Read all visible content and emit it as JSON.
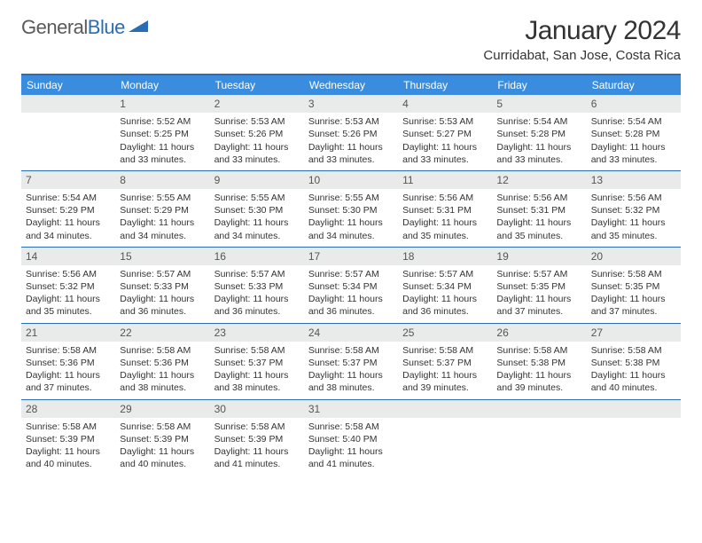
{
  "logo": {
    "text1": "General",
    "text2": "Blue"
  },
  "title": "January 2024",
  "location": "Curridabat, San Jose, Costa Rica",
  "weekdays": [
    "Sunday",
    "Monday",
    "Tuesday",
    "Wednesday",
    "Thursday",
    "Friday",
    "Saturday"
  ],
  "colors": {
    "header_bar": "#3a8dde",
    "border": "#2a6db5",
    "daynum_bg": "#e9eaea"
  },
  "weeks": [
    [
      {
        "n": "",
        "sr": "",
        "ss": "",
        "dl": ""
      },
      {
        "n": "1",
        "sr": "Sunrise: 5:52 AM",
        "ss": "Sunset: 5:25 PM",
        "dl": "Daylight: 11 hours and 33 minutes."
      },
      {
        "n": "2",
        "sr": "Sunrise: 5:53 AM",
        "ss": "Sunset: 5:26 PM",
        "dl": "Daylight: 11 hours and 33 minutes."
      },
      {
        "n": "3",
        "sr": "Sunrise: 5:53 AM",
        "ss": "Sunset: 5:26 PM",
        "dl": "Daylight: 11 hours and 33 minutes."
      },
      {
        "n": "4",
        "sr": "Sunrise: 5:53 AM",
        "ss": "Sunset: 5:27 PM",
        "dl": "Daylight: 11 hours and 33 minutes."
      },
      {
        "n": "5",
        "sr": "Sunrise: 5:54 AM",
        "ss": "Sunset: 5:28 PM",
        "dl": "Daylight: 11 hours and 33 minutes."
      },
      {
        "n": "6",
        "sr": "Sunrise: 5:54 AM",
        "ss": "Sunset: 5:28 PM",
        "dl": "Daylight: 11 hours and 33 minutes."
      }
    ],
    [
      {
        "n": "7",
        "sr": "Sunrise: 5:54 AM",
        "ss": "Sunset: 5:29 PM",
        "dl": "Daylight: 11 hours and 34 minutes."
      },
      {
        "n": "8",
        "sr": "Sunrise: 5:55 AM",
        "ss": "Sunset: 5:29 PM",
        "dl": "Daylight: 11 hours and 34 minutes."
      },
      {
        "n": "9",
        "sr": "Sunrise: 5:55 AM",
        "ss": "Sunset: 5:30 PM",
        "dl": "Daylight: 11 hours and 34 minutes."
      },
      {
        "n": "10",
        "sr": "Sunrise: 5:55 AM",
        "ss": "Sunset: 5:30 PM",
        "dl": "Daylight: 11 hours and 34 minutes."
      },
      {
        "n": "11",
        "sr": "Sunrise: 5:56 AM",
        "ss": "Sunset: 5:31 PM",
        "dl": "Daylight: 11 hours and 35 minutes."
      },
      {
        "n": "12",
        "sr": "Sunrise: 5:56 AM",
        "ss": "Sunset: 5:31 PM",
        "dl": "Daylight: 11 hours and 35 minutes."
      },
      {
        "n": "13",
        "sr": "Sunrise: 5:56 AM",
        "ss": "Sunset: 5:32 PM",
        "dl": "Daylight: 11 hours and 35 minutes."
      }
    ],
    [
      {
        "n": "14",
        "sr": "Sunrise: 5:56 AM",
        "ss": "Sunset: 5:32 PM",
        "dl": "Daylight: 11 hours and 35 minutes."
      },
      {
        "n": "15",
        "sr": "Sunrise: 5:57 AM",
        "ss": "Sunset: 5:33 PM",
        "dl": "Daylight: 11 hours and 36 minutes."
      },
      {
        "n": "16",
        "sr": "Sunrise: 5:57 AM",
        "ss": "Sunset: 5:33 PM",
        "dl": "Daylight: 11 hours and 36 minutes."
      },
      {
        "n": "17",
        "sr": "Sunrise: 5:57 AM",
        "ss": "Sunset: 5:34 PM",
        "dl": "Daylight: 11 hours and 36 minutes."
      },
      {
        "n": "18",
        "sr": "Sunrise: 5:57 AM",
        "ss": "Sunset: 5:34 PM",
        "dl": "Daylight: 11 hours and 36 minutes."
      },
      {
        "n": "19",
        "sr": "Sunrise: 5:57 AM",
        "ss": "Sunset: 5:35 PM",
        "dl": "Daylight: 11 hours and 37 minutes."
      },
      {
        "n": "20",
        "sr": "Sunrise: 5:58 AM",
        "ss": "Sunset: 5:35 PM",
        "dl": "Daylight: 11 hours and 37 minutes."
      }
    ],
    [
      {
        "n": "21",
        "sr": "Sunrise: 5:58 AM",
        "ss": "Sunset: 5:36 PM",
        "dl": "Daylight: 11 hours and 37 minutes."
      },
      {
        "n": "22",
        "sr": "Sunrise: 5:58 AM",
        "ss": "Sunset: 5:36 PM",
        "dl": "Daylight: 11 hours and 38 minutes."
      },
      {
        "n": "23",
        "sr": "Sunrise: 5:58 AM",
        "ss": "Sunset: 5:37 PM",
        "dl": "Daylight: 11 hours and 38 minutes."
      },
      {
        "n": "24",
        "sr": "Sunrise: 5:58 AM",
        "ss": "Sunset: 5:37 PM",
        "dl": "Daylight: 11 hours and 38 minutes."
      },
      {
        "n": "25",
        "sr": "Sunrise: 5:58 AM",
        "ss": "Sunset: 5:37 PM",
        "dl": "Daylight: 11 hours and 39 minutes."
      },
      {
        "n": "26",
        "sr": "Sunrise: 5:58 AM",
        "ss": "Sunset: 5:38 PM",
        "dl": "Daylight: 11 hours and 39 minutes."
      },
      {
        "n": "27",
        "sr": "Sunrise: 5:58 AM",
        "ss": "Sunset: 5:38 PM",
        "dl": "Daylight: 11 hours and 40 minutes."
      }
    ],
    [
      {
        "n": "28",
        "sr": "Sunrise: 5:58 AM",
        "ss": "Sunset: 5:39 PM",
        "dl": "Daylight: 11 hours and 40 minutes."
      },
      {
        "n": "29",
        "sr": "Sunrise: 5:58 AM",
        "ss": "Sunset: 5:39 PM",
        "dl": "Daylight: 11 hours and 40 minutes."
      },
      {
        "n": "30",
        "sr": "Sunrise: 5:58 AM",
        "ss": "Sunset: 5:39 PM",
        "dl": "Daylight: 11 hours and 41 minutes."
      },
      {
        "n": "31",
        "sr": "Sunrise: 5:58 AM",
        "ss": "Sunset: 5:40 PM",
        "dl": "Daylight: 11 hours and 41 minutes."
      },
      {
        "n": "",
        "sr": "",
        "ss": "",
        "dl": ""
      },
      {
        "n": "",
        "sr": "",
        "ss": "",
        "dl": ""
      },
      {
        "n": "",
        "sr": "",
        "ss": "",
        "dl": ""
      }
    ]
  ]
}
